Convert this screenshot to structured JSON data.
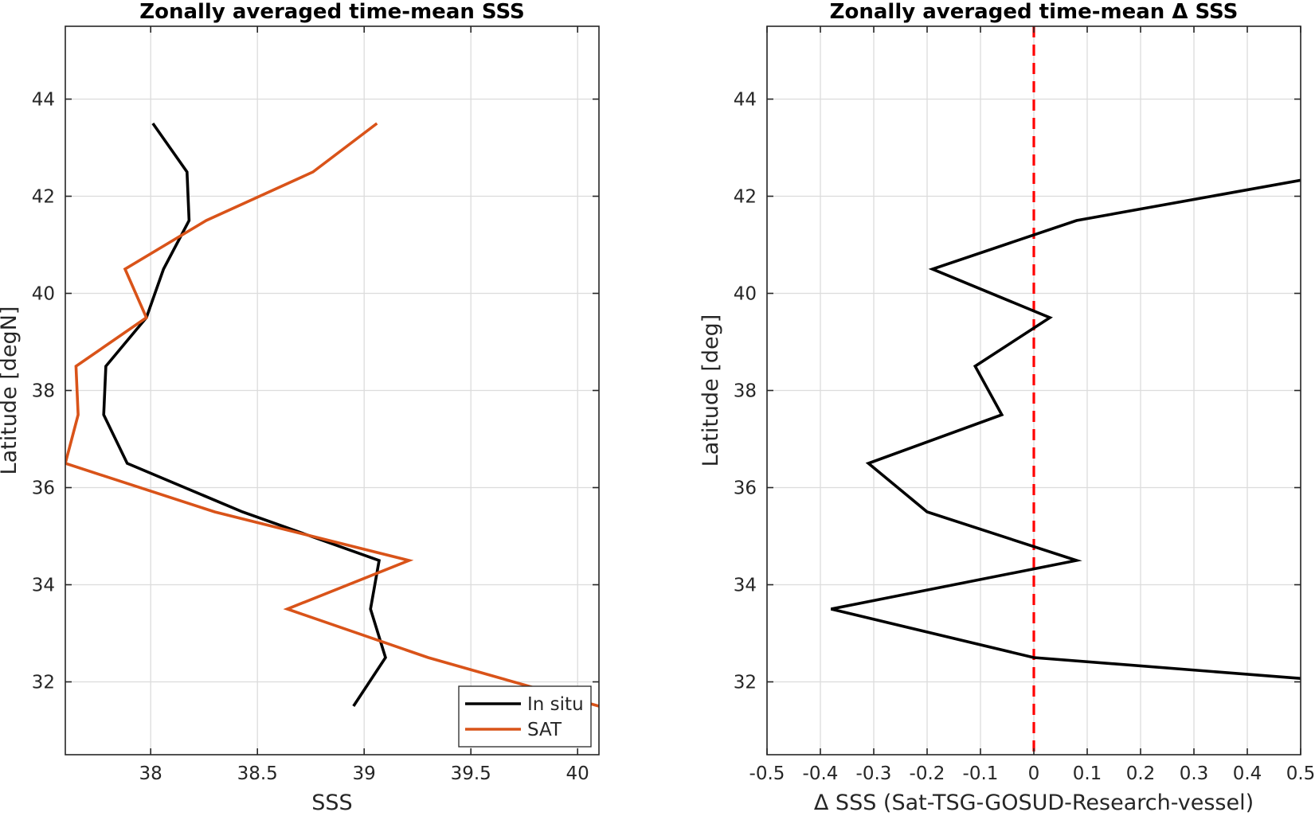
{
  "chart_data": [
    {
      "type": "line",
      "title": "Zonally averaged time-mean SSS",
      "xlabel": "SSS",
      "ylabel": "Latitude [degN]",
      "xlim": [
        37.6,
        40.1
      ],
      "ylim": [
        30.5,
        45.5
      ],
      "xticks": [
        38,
        38.5,
        39,
        39.5,
        40
      ],
      "xtick_labels": [
        "38",
        "38.5",
        "39",
        "39.5",
        "40"
      ],
      "yticks": [
        32,
        34,
        36,
        38,
        40,
        42,
        44
      ],
      "ytick_labels": [
        "32",
        "34",
        "36",
        "38",
        "40",
        "42",
        "44"
      ],
      "grid": true,
      "legend": "bottom-right",
      "series": [
        {
          "name": "In situ",
          "color": "#000000",
          "points": [
            [
              38.01,
              43.5
            ],
            [
              38.17,
              42.5
            ],
            [
              38.18,
              41.5
            ],
            [
              38.06,
              40.5
            ],
            [
              37.98,
              39.5
            ],
            [
              37.79,
              38.5
            ],
            [
              37.78,
              37.5
            ],
            [
              37.89,
              36.5
            ],
            [
              38.43,
              35.5
            ],
            [
              39.07,
              34.5
            ],
            [
              39.03,
              33.5
            ],
            [
              39.1,
              32.5
            ],
            [
              38.95,
              31.5
            ]
          ]
        },
        {
          "name": "SAT",
          "color": "#D95319",
          "points": [
            [
              39.06,
              43.5
            ],
            [
              38.76,
              42.5
            ],
            [
              38.26,
              41.5
            ],
            [
              37.88,
              40.5
            ],
            [
              37.98,
              39.5
            ],
            [
              37.65,
              38.5
            ],
            [
              37.66,
              37.5
            ],
            [
              37.6,
              36.5
            ],
            [
              38.3,
              35.5
            ],
            [
              39.21,
              34.5
            ],
            [
              38.64,
              33.5
            ],
            [
              39.3,
              32.5
            ],
            [
              40.1,
              31.5
            ]
          ]
        }
      ]
    },
    {
      "type": "line",
      "title": "Zonally averaged time-mean Δ SSS",
      "xlabel": "Δ SSS (Sat-TSG-GOSUD-Research-vessel)",
      "ylabel": "Latitude [deg]",
      "xlim": [
        -0.5,
        0.5
      ],
      "ylim": [
        30.5,
        45.5
      ],
      "xticks": [
        -0.5,
        -0.4,
        -0.3,
        -0.2,
        -0.1,
        0,
        0.1,
        0.2,
        0.3,
        0.4,
        0.5
      ],
      "xtick_labels": [
        "-0.5",
        "-0.4",
        "-0.3",
        "-0.2",
        "-0.1",
        "0",
        "0.1",
        "0.2",
        "0.3",
        "0.4",
        "0.5"
      ],
      "yticks": [
        32,
        34,
        36,
        38,
        40,
        42,
        44
      ],
      "ytick_labels": [
        "32",
        "34",
        "36",
        "38",
        "40",
        "42",
        "44"
      ],
      "grid": true,
      "reference_line": {
        "x": 0,
        "color": "#FF0000",
        "style": "dashed"
      },
      "series": [
        {
          "color": "#000000",
          "points": [
            [
              0.5,
              42.33
            ],
            [
              0.08,
              41.5
            ],
            [
              -0.19,
              40.5
            ],
            [
              0.03,
              39.5
            ],
            [
              -0.11,
              38.5
            ],
            [
              -0.06,
              37.5
            ],
            [
              -0.31,
              36.5
            ],
            [
              -0.2,
              35.5
            ],
            [
              0.08,
              34.5
            ],
            [
              -0.38,
              33.5
            ],
            [
              0.0,
              32.5
            ],
            [
              0.5,
              32.07
            ]
          ]
        }
      ]
    }
  ]
}
